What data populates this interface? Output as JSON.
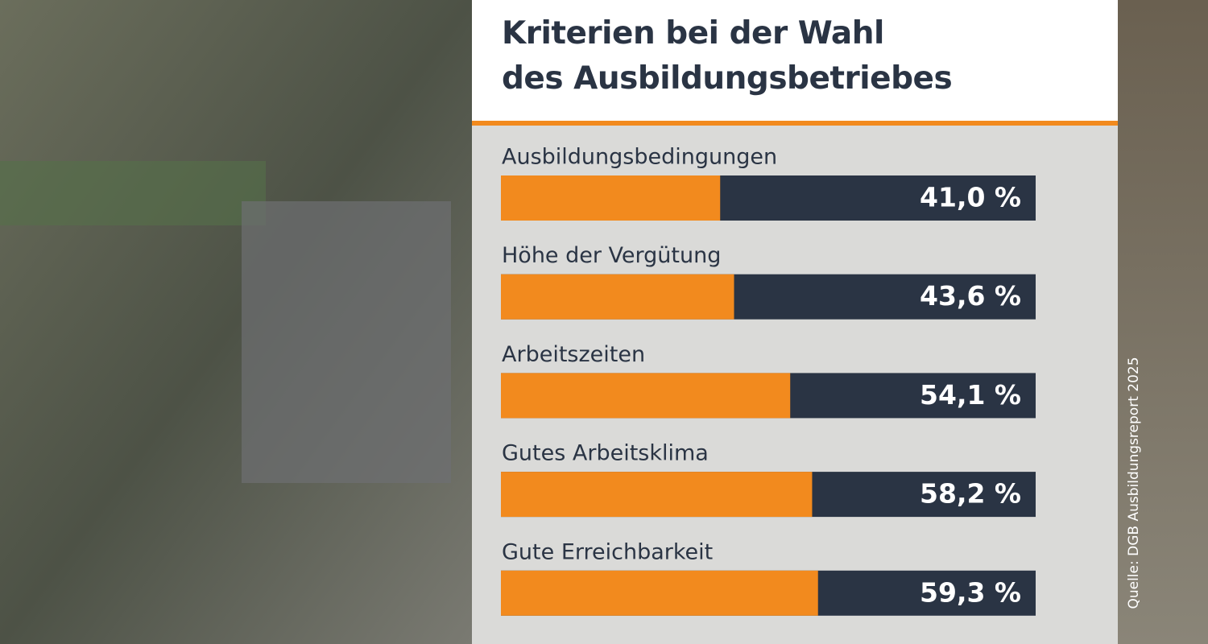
{
  "chart_data": {
    "type": "bar",
    "orientation": "horizontal",
    "title": [
      "Kriterien bei der Wahl",
      "des Ausbildungsbetriebes"
    ],
    "categories": [
      "Ausbildungsbedingungen",
      "Höhe der Vergütung",
      "Arbeitszeiten",
      "Gutes Arbeitsklima",
      "Gute Erreichbarkeit"
    ],
    "values": [
      41.0,
      43.6,
      54.1,
      58.2,
      59.3
    ],
    "value_labels": [
      "41,0 %",
      "43,6 %",
      "54,1 %",
      "58,2 %",
      "59,3 %"
    ],
    "color": "#f28a1e",
    "track_color": "#2a3444",
    "xlim": [
      0,
      100
    ],
    "source": "Quelle: DGB Ausbildungsreport 2025"
  }
}
